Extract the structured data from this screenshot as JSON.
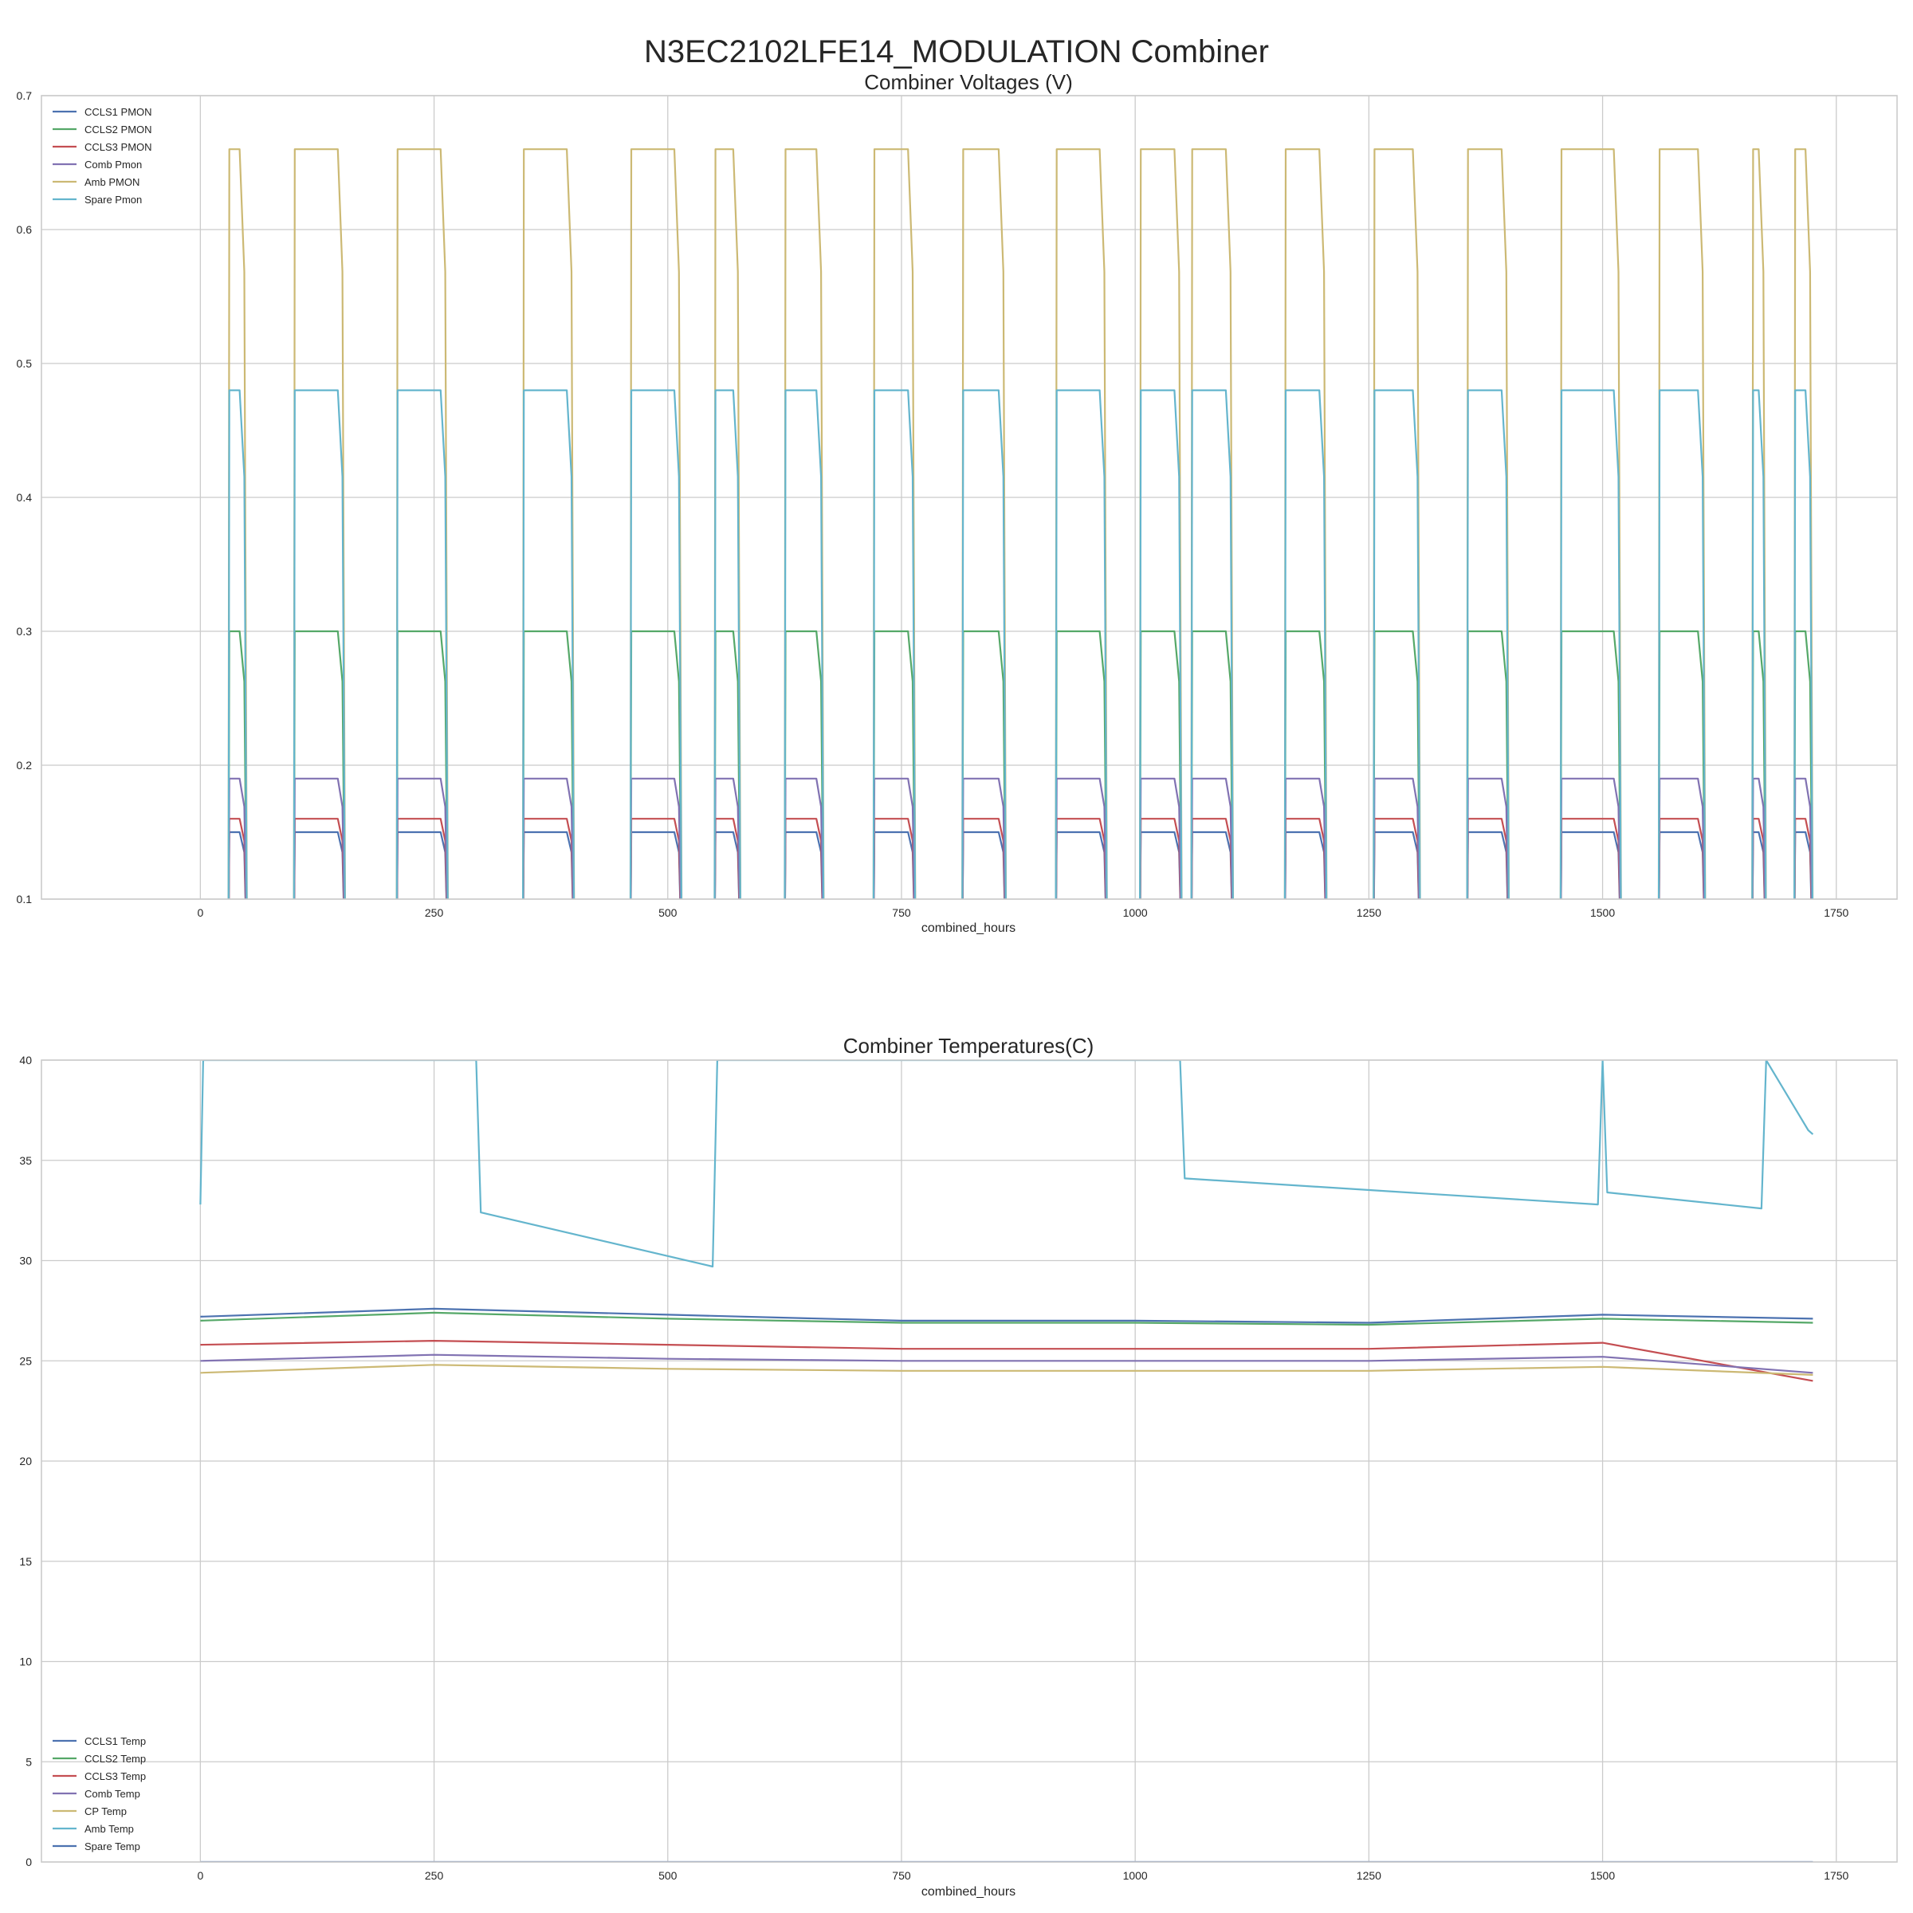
{
  "figure": {
    "suptitle": "N3EC2102LFE14_MODULATION Combiner"
  },
  "chart_data": [
    {
      "type": "line",
      "title": "Combiner Voltages (V)",
      "xlabel": "combined_hours",
      "ylabel": "",
      "xlim": [
        -170,
        1815
      ],
      "ylim": [
        0.1,
        0.7
      ],
      "xticks": [
        0,
        250,
        500,
        750,
        1000,
        1250,
        1500,
        1750
      ],
      "yticks": [
        0.1,
        0.2,
        0.3,
        0.4,
        0.5,
        0.6,
        0.7
      ],
      "grid": true,
      "legend_position": "top-left",
      "on_off_cycles": [
        {
          "on": 30,
          "off": 50
        },
        {
          "on": 100,
          "off": 155
        },
        {
          "on": 210,
          "off": 265
        },
        {
          "on": 345,
          "off": 400
        },
        {
          "on": 460,
          "off": 515
        },
        {
          "on": 550,
          "off": 578
        },
        {
          "on": 625,
          "off": 667
        },
        {
          "on": 720,
          "off": 765
        },
        {
          "on": 815,
          "off": 862
        },
        {
          "on": 915,
          "off": 970
        },
        {
          "on": 1005,
          "off": 1050
        },
        {
          "on": 1060,
          "off": 1105
        },
        {
          "on": 1160,
          "off": 1205
        },
        {
          "on": 1255,
          "off": 1305
        },
        {
          "on": 1355,
          "off": 1400
        },
        {
          "on": 1455,
          "off": 1520
        },
        {
          "on": 1560,
          "off": 1610
        },
        {
          "on": 1660,
          "off": 1675
        },
        {
          "on": 1705,
          "off": 1725
        }
      ],
      "series": [
        {
          "name": "CCLS1 PMON",
          "color": "#4c72b0",
          "on_level": 0.15,
          "off_level": 0.05
        },
        {
          "name": "CCLS2 PMON",
          "color": "#55a868",
          "on_level": 0.3,
          "off_level": 0.05
        },
        {
          "name": "CCLS3 PMON",
          "color": "#c44e52",
          "on_level": 0.16,
          "off_level": 0.05
        },
        {
          "name": "Comb Pmon",
          "color": "#8172b2",
          "on_level": 0.19,
          "off_level": 0.05
        },
        {
          "name": "Amb PMON",
          "color": "#ccb974",
          "on_level": 0.66,
          "off_level": 0.05
        },
        {
          "name": "Spare Pmon",
          "color": "#64b5cd",
          "on_level": 0.48,
          "off_level": 0.05
        }
      ]
    },
    {
      "type": "line",
      "title": "Combiner Temperatures(C)",
      "xlabel": "combined_hours",
      "ylabel": "",
      "xlim": [
        -170,
        1815
      ],
      "ylim": [
        0,
        40
      ],
      "xticks": [
        0,
        250,
        500,
        750,
        1000,
        1250,
        1500,
        1750
      ],
      "yticks": [
        0,
        5,
        10,
        15,
        20,
        25,
        30,
        35,
        40
      ],
      "grid": true,
      "legend_position": "bottom-left",
      "series": [
        {
          "name": "CCLS1 Temp",
          "color": "#4c72b0",
          "x": [
            0,
            250,
            500,
            750,
            1000,
            1250,
            1500,
            1725
          ],
          "y": [
            27.2,
            27.6,
            27.3,
            27.0,
            27.0,
            26.9,
            27.3,
            27.1
          ]
        },
        {
          "name": "CCLS2 Temp",
          "color": "#55a868",
          "x": [
            0,
            250,
            500,
            750,
            1000,
            1250,
            1500,
            1725
          ],
          "y": [
            27.0,
            27.4,
            27.1,
            26.9,
            26.9,
            26.8,
            27.1,
            26.9
          ]
        },
        {
          "name": "CCLS3 Temp",
          "color": "#c44e52",
          "x": [
            0,
            250,
            500,
            750,
            1000,
            1250,
            1500,
            1725
          ],
          "y": [
            25.8,
            26.0,
            25.8,
            25.6,
            25.6,
            25.6,
            25.9,
            24.0
          ]
        },
        {
          "name": "Comb Temp",
          "color": "#8172b2",
          "x": [
            0,
            250,
            500,
            750,
            1000,
            1250,
            1500,
            1725
          ],
          "y": [
            25.0,
            25.3,
            25.1,
            25.0,
            25.0,
            25.0,
            25.2,
            24.4
          ]
        },
        {
          "name": "CP Temp",
          "color": "#ccb974",
          "x": [
            0,
            250,
            500,
            750,
            1000,
            1250,
            1500,
            1725
          ],
          "y": [
            24.4,
            24.8,
            24.6,
            24.5,
            24.5,
            24.5,
            24.7,
            24.3
          ]
        },
        {
          "name": "Amb Temp",
          "color": "#64b5cd",
          "x": [
            0,
            3,
            295,
            300,
            548,
            553,
            1048,
            1053,
            1495,
            1500,
            1505,
            1670,
            1675,
            1720,
            1725
          ],
          "y": [
            32.8,
            40.0,
            40.0,
            32.4,
            29.7,
            40.0,
            40.0,
            34.1,
            32.8,
            40.0,
            33.4,
            32.6,
            40.0,
            36.5,
            36.3
          ]
        },
        {
          "name": "Spare Temp",
          "color": "#4c72b0",
          "x": [
            0,
            1725
          ],
          "y": [
            0,
            0
          ]
        }
      ]
    }
  ]
}
